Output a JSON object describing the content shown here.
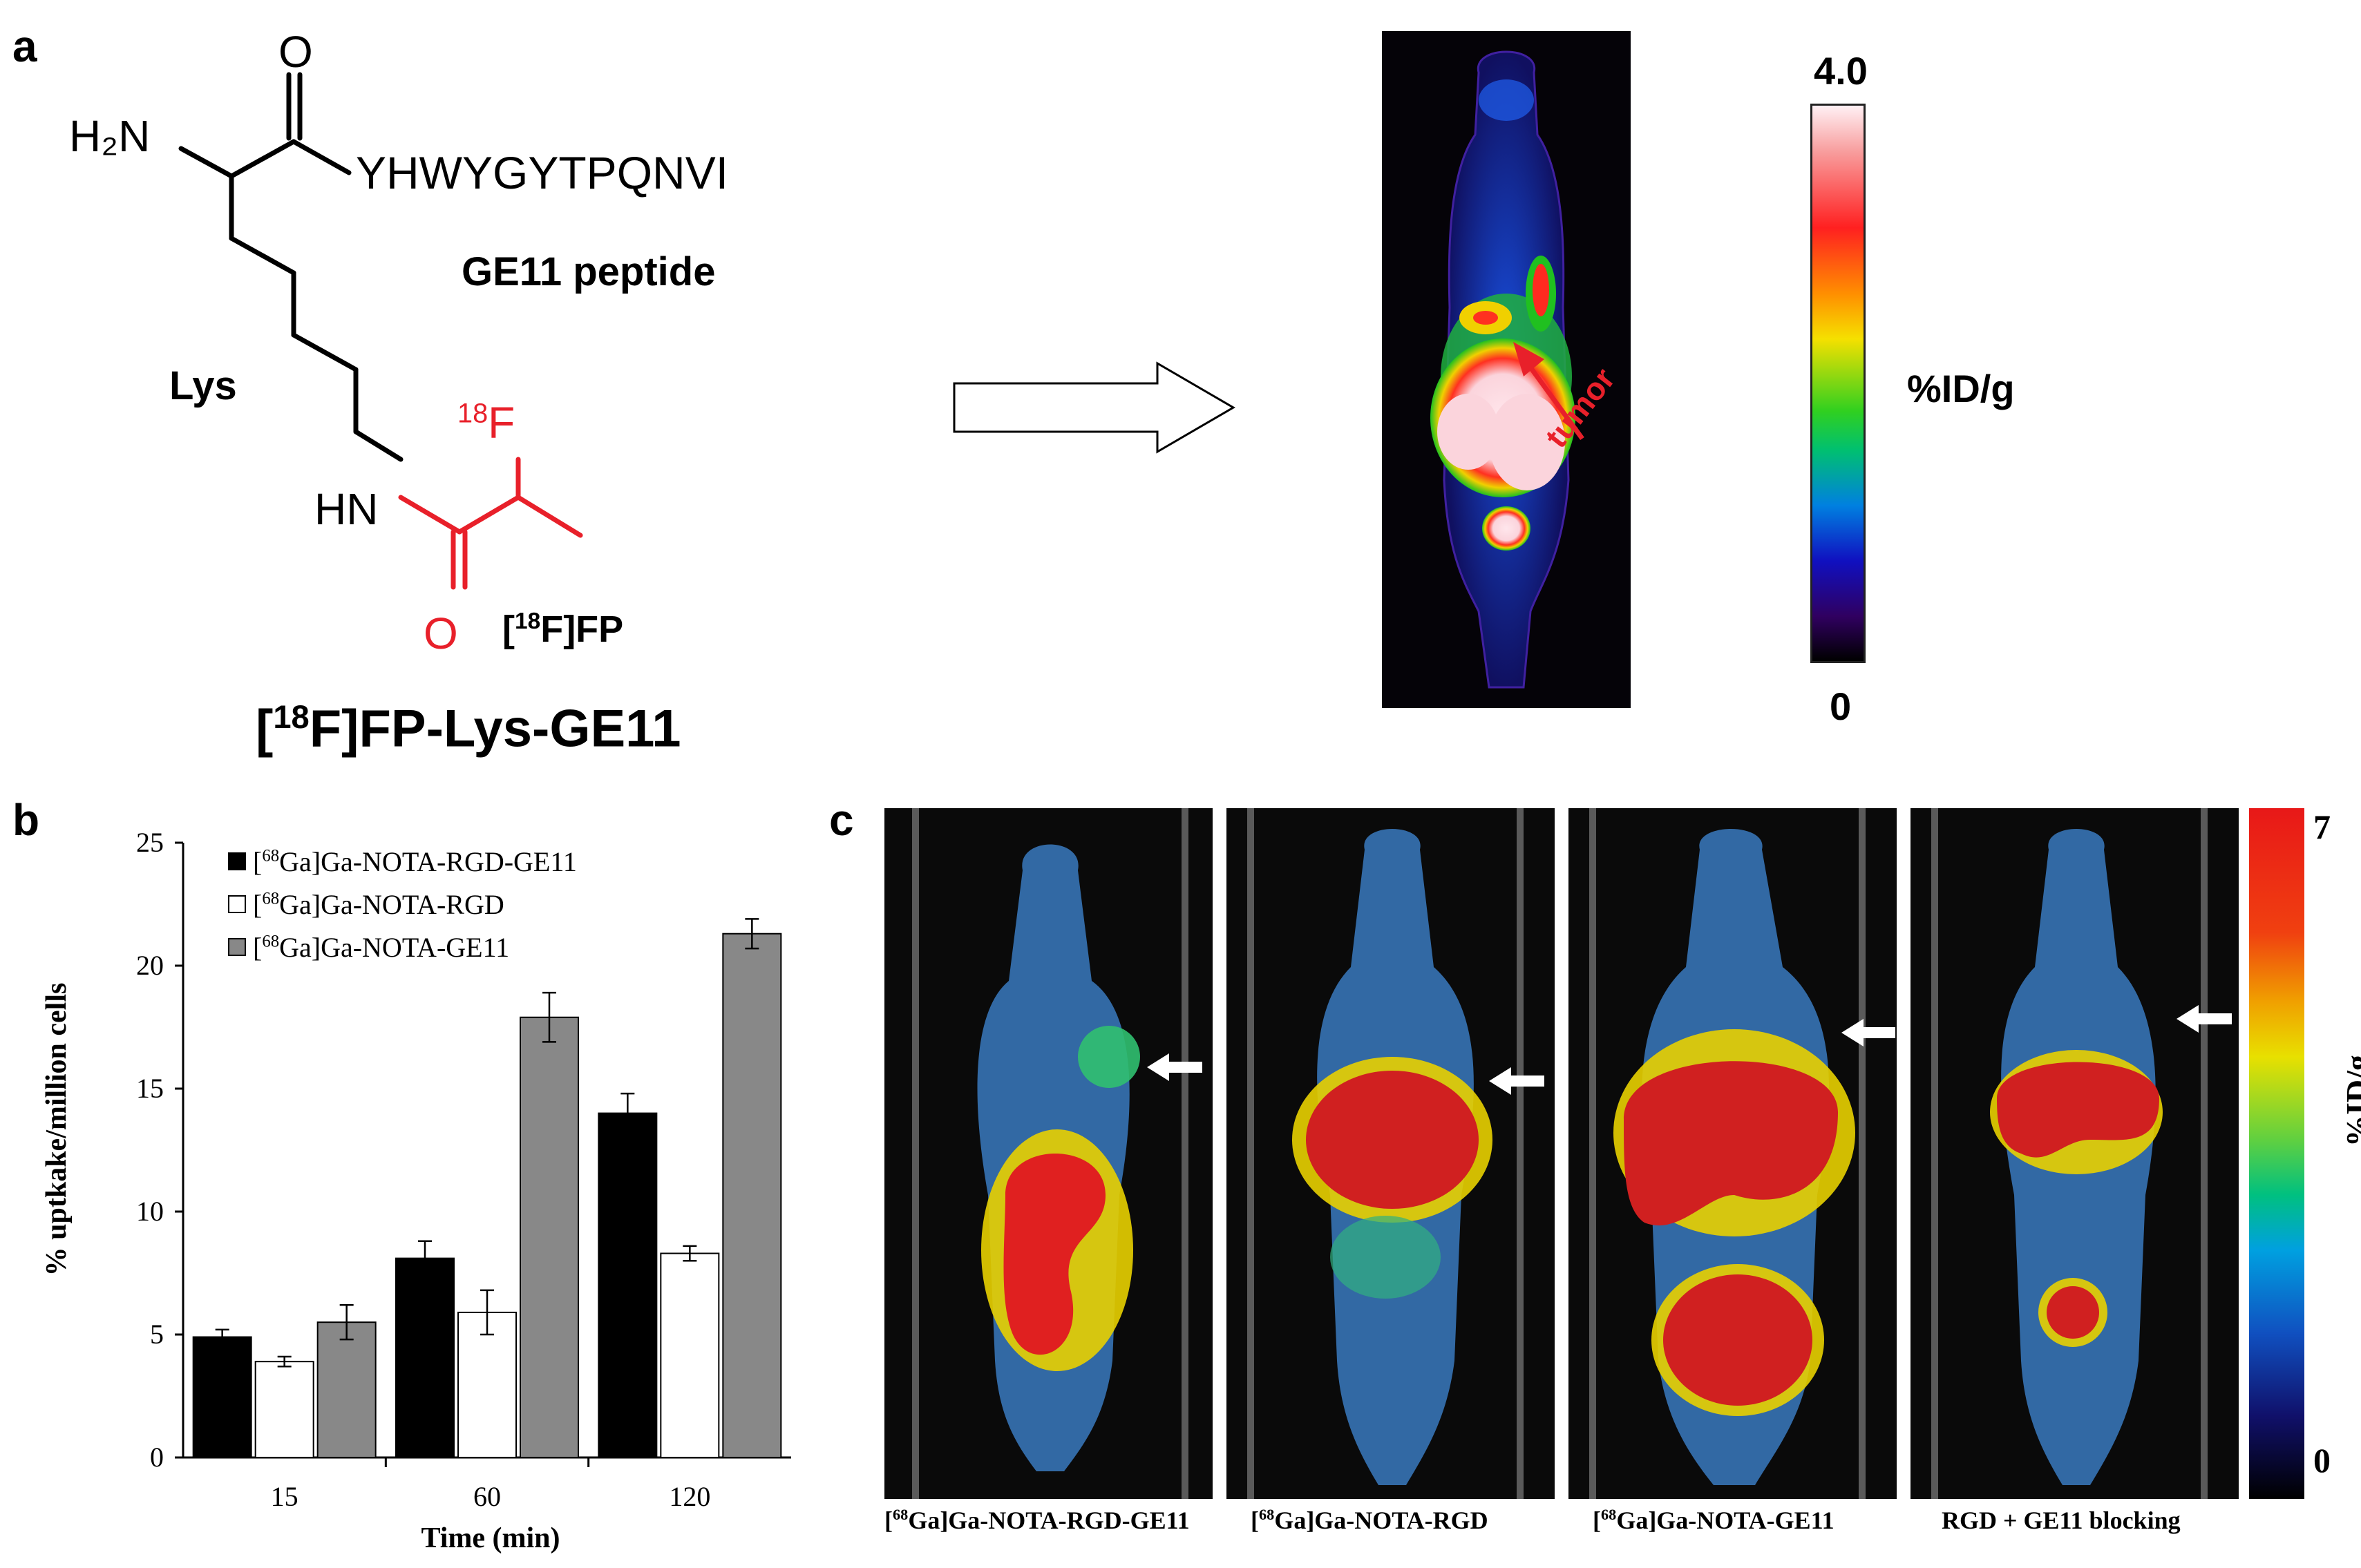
{
  "panel_a": {
    "letter": "a",
    "structure": {
      "h2n": "H₂N",
      "o_top": "O",
      "sequence": "YHWYGYTPQNVI",
      "peptide_label": "GE11 peptide",
      "lys_label": "Lys",
      "hn": "HN",
      "fluorine_mass": "18",
      "fluorine": "F",
      "o_bottom": "O",
      "fp_open": "[",
      "fp_mass": "18",
      "fp_close": "F]FP",
      "compound_open": "[",
      "compound_mass": "18",
      "compound_close": "F]FP-Lys-GE11"
    },
    "pet_image": {
      "tumor_label": "tumor",
      "scale_max": "4.0",
      "scale_min": "0",
      "scale_unit": "%ID/g"
    }
  },
  "panel_b": {
    "letter": "b"
  },
  "panel_c": {
    "letter": "c",
    "scale_max": "7",
    "scale_min": "0",
    "scale_unit": "%ID/g",
    "captions": [
      {
        "pre": "[",
        "mass": "68",
        "post": "Ga]Ga-NOTA-RGD-GE11"
      },
      {
        "pre": "[",
        "mass": "68",
        "post": "Ga]Ga-NOTA-RGD"
      },
      {
        "pre": "[",
        "mass": "68",
        "post": "Ga]Ga-NOTA-GE11"
      },
      {
        "pre": "",
        "mass": "",
        "post": "RGD + GE11 blocking"
      }
    ]
  },
  "chart_data": {
    "type": "bar",
    "xlabel": "Time (min)",
    "ylabel": "% uptkake/million cells",
    "categories": [
      "15",
      "60",
      "120"
    ],
    "ylim": [
      0,
      25
    ],
    "yticks": [
      0,
      5,
      10,
      15,
      20,
      25
    ],
    "legend_placement": "top-left",
    "grid": false,
    "series": [
      {
        "name": "[68Ga]Ga-NOTA-RGD-GE11",
        "legend_mass": "68",
        "legend_rest": "Ga]Ga-NOTA-RGD-GE11",
        "color": "#000000",
        "values": [
          4.9,
          8.1,
          14.0
        ],
        "errors": [
          0.3,
          0.7,
          0.8
        ]
      },
      {
        "name": "[68Ga]Ga-NOTA-RGD",
        "legend_mass": "68",
        "legend_rest": "Ga]Ga-NOTA-RGD",
        "color": "#ffffff",
        "values": [
          3.9,
          5.9,
          8.3
        ],
        "errors": [
          0.2,
          0.9,
          0.3
        ]
      },
      {
        "name": "[68Ga]Ga-NOTA-GE11",
        "legend_mass": "68",
        "legend_rest": "Ga]Ga-NOTA-GE11",
        "color": "#888888",
        "values": [
          5.5,
          17.9,
          21.3
        ],
        "errors": [
          0.7,
          1.0,
          0.6
        ]
      }
    ]
  }
}
